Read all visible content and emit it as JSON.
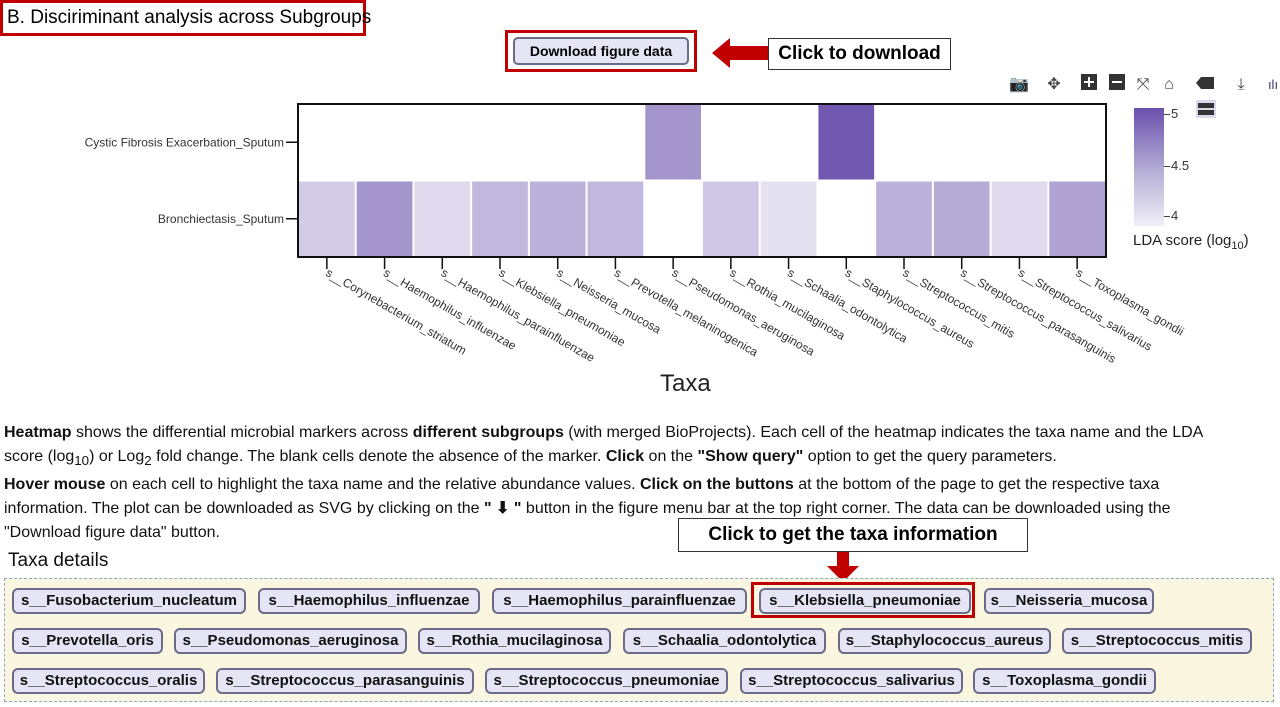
{
  "section_title": "B. Disciriminant analysis across Subgroups",
  "download_button": "Download figure data",
  "callout_download": "Click to download",
  "callout_taxa": "Click to get the taxa information",
  "modebar": [
    "camera-icon",
    "pan-icon",
    "zoom-in-icon",
    "zoom-out-icon",
    "autoscale-icon",
    "home-icon",
    "hover-closest-icon",
    "download-svg-icon",
    "plotly-logo-icon"
  ],
  "chart_data": {
    "type": "heatmap",
    "x": [
      "s__Corynebacterium_striatum",
      "s__Haemophilus_influenzae",
      "s__Haemophilus_parainfluenzae",
      "s__Klebsiella_pneumoniae",
      "s__Neisseria_mucosa",
      "s__Prevotella_melaninogenica",
      "s__Pseudomonas_aeruginosa",
      "s__Rothia_mucilaginosa",
      "s__Schaalia_odontolytica",
      "s__Staphylococcus_aureus",
      "s__Streptococcus_mitis",
      "s__Streptococcus_parasanguinis",
      "s__Streptococcus_salivarius",
      "s__Toxoplasma_gondii"
    ],
    "y": [
      "Cystic Fibrosis Exacerbation_Sputum",
      "Bronchiectasis_Sputum"
    ],
    "z": [
      [
        null,
        null,
        null,
        null,
        null,
        null,
        4.6,
        null,
        null,
        5.05,
        null,
        null,
        null,
        null
      ],
      [
        4.2,
        4.6,
        4.1,
        4.35,
        4.4,
        4.35,
        null,
        4.25,
        4.05,
        null,
        4.4,
        4.45,
        4.1,
        4.5
      ]
    ],
    "colorbar_title": "LDA score (log10)",
    "colorbar_ticks": [
      "5",
      "4.5",
      "4"
    ],
    "zlim": [
      3.95,
      5.1
    ],
    "xlabel": "Taxa",
    "colors": {
      "low": "#f0eff7",
      "high": "#6a50ad"
    }
  },
  "description": {
    "p1_b1": "Heatmap",
    "p1_t1": " shows the differential microbial markers across ",
    "p1_b2": "different subgroups",
    "p1_t2": " (with merged BioProjects). Each cell of the heatmap indicates the taxa name and the LDA score (log",
    "p1_sub1": "10",
    "p1_t3": ") or Log",
    "p1_sub2": "2",
    "p1_t4": " fold change. The blank cells denote the absence of the marker. ",
    "p1_b3": "Click",
    "p1_t5": " on the ",
    "p1_b4": "\"Show query\"",
    "p1_t6": " option to get the query parameters.",
    "p2_b1": "Hover mouse",
    "p2_t1": " on each cell to highlight the taxa name and the relative abundance values. ",
    "p2_b2": "Click on the buttons",
    "p2_t2": " at the bottom of the page to get the respective taxa information. The plot can be downloaded as SVG by clicking on the ",
    "p2_b3": "\" ⬇ \"",
    "p2_t3": " button in the figure menu bar at the top right corner. The data can be downloaded using the \"Download figure data\" button."
  },
  "taxa_heading": "Taxa details",
  "taxa_buttons": [
    "s__Fusobacterium_nucleatum",
    "s__Haemophilus_influenzae",
    "s__Haemophilus_parainfluenzae",
    "s__Klebsiella_pneumoniae",
    "s__Neisseria_mucosa",
    "s__Prevotella_oris",
    "s__Pseudomonas_aeruginosa",
    "s__Rothia_mucilaginosa",
    "s__Schaalia_odontolytica",
    "s__Staphylococcus_aureus",
    "s__Streptococcus_mitis",
    "s__Streptococcus_oralis",
    "s__Streptococcus_parasanguinis",
    "s__Streptococcus_pneumoniae",
    "s__Streptococcus_salivarius",
    "s__Toxoplasma_gondii"
  ]
}
